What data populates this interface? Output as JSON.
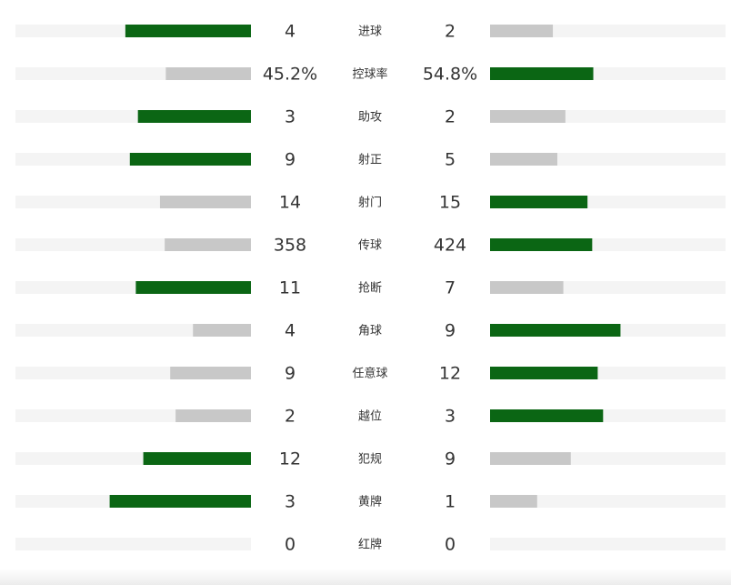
{
  "stats": {
    "colors": {
      "leading": "#0b6614",
      "trailing": "#c8c8c8",
      "track": "#f4f4f4"
    },
    "rows": [
      {
        "label": "进球",
        "home": 4,
        "away": 2
      },
      {
        "label": "控球率",
        "home": 45.2,
        "away": 54.8,
        "home_label": "45.2%",
        "away_label": "54.8%"
      },
      {
        "label": "助攻",
        "home": 3,
        "away": 2
      },
      {
        "label": "射正",
        "home": 9,
        "away": 5
      },
      {
        "label": "射门",
        "home": 14,
        "away": 15
      },
      {
        "label": "传球",
        "home": 358,
        "away": 424
      },
      {
        "label": "抢断",
        "home": 11,
        "away": 7
      },
      {
        "label": "角球",
        "home": 4,
        "away": 9
      },
      {
        "label": "任意球",
        "home": 9,
        "away": 12
      },
      {
        "label": "越位",
        "home": 2,
        "away": 3
      },
      {
        "label": "犯规",
        "home": 12,
        "away": 9
      },
      {
        "label": "黄牌",
        "home": 3,
        "away": 1
      },
      {
        "label": "红牌",
        "home": 0,
        "away": 0
      }
    ]
  }
}
